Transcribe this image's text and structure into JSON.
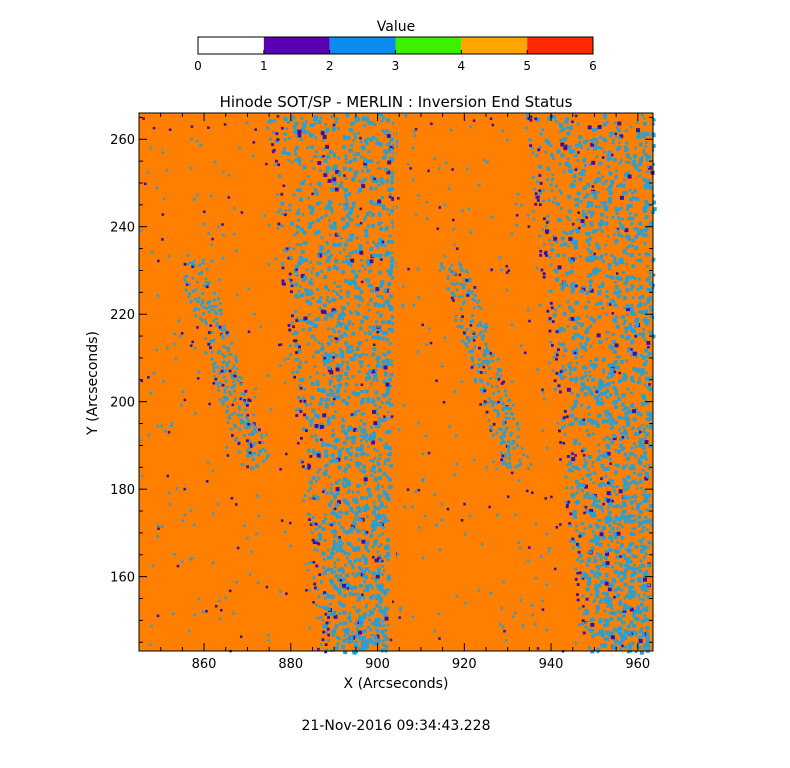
{
  "chart_data": {
    "type": "heatmap",
    "title": "Hinode SOT/SP - MERLIN : Inversion End Status",
    "xlabel": "X (Arcseconds)",
    "ylabel": "Y (Arcseconds)",
    "xlim": [
      845,
      963.5
    ],
    "ylim": [
      143,
      266
    ],
    "x_ticks": [
      860,
      880,
      900,
      920,
      940,
      960
    ],
    "y_ticks": [
      160,
      180,
      200,
      220,
      240,
      260
    ],
    "timestamp": "21-Nov-2016 09:34:43.228",
    "colorbar": {
      "title": "Value",
      "ticks": [
        0,
        1,
        2,
        3,
        4,
        5,
        6
      ],
      "bins": [
        {
          "from": 0,
          "to": 1,
          "color": "#ffffff"
        },
        {
          "from": 1,
          "to": 2,
          "color": "#5a00b4"
        },
        {
          "from": 2,
          "to": 3,
          "color": "#0a8cf0"
        },
        {
          "from": 3,
          "to": 4,
          "color": "#3cf000"
        },
        {
          "from": 4,
          "to": 5,
          "color": "#ffa500"
        },
        {
          "from": 5,
          "to": 6,
          "color": "#ff2800"
        }
      ]
    },
    "field": {
      "dominant_value": 4,
      "dominant_color": "#ff8000",
      "scatter_value": 2,
      "scatter_color": "#2c9ed0",
      "sparse_value": 1,
      "sparse_color": "#3a10a8",
      "scan_boundary_x": 904
    }
  }
}
